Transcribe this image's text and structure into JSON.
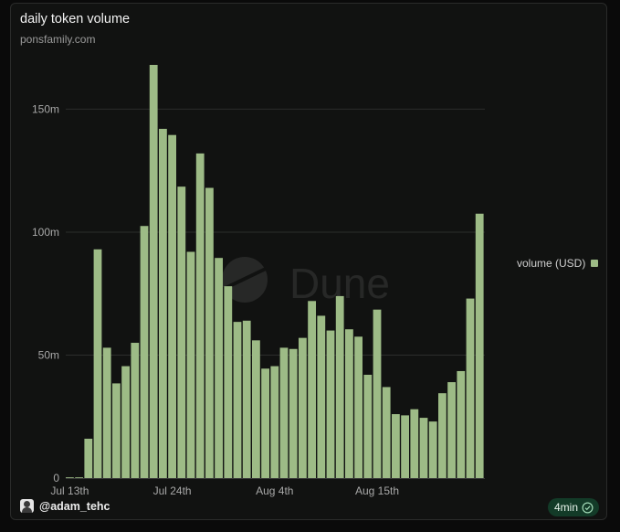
{
  "header": {
    "title": "daily token volume",
    "subtitle": "ponsfamily.com"
  },
  "watermark": {
    "text": "Dune",
    "icon": "dune-logo-icon"
  },
  "legend": {
    "label": "volume (USD)"
  },
  "footer": {
    "user": "@adam_tehc",
    "avatar_icon": "avatar-icon",
    "freshness": "4min",
    "freshness_icon": "check-circle-icon"
  },
  "colors": {
    "bar": "#9dbb86",
    "freshness_bg": "#133b28"
  },
  "chart_data": {
    "type": "bar",
    "title": "daily token volume",
    "xlabel": "",
    "ylabel": "",
    "x_ticks": [
      "Jul 13th",
      "Jul 24th",
      "Aug 4th",
      "Aug 15th"
    ],
    "y_ticks": [
      "0",
      "50m",
      "100m",
      "150m"
    ],
    "ylim": [
      0,
      168000000
    ],
    "grid": true,
    "legend_position": "right",
    "series": [
      {
        "name": "volume (USD)",
        "values": [
          0,
          0,
          16000000,
          93000000,
          53000000,
          38500000,
          45500000,
          55000000,
          102500000,
          168000000,
          142000000,
          139500000,
          118500000,
          92000000,
          132000000,
          118000000,
          89500000,
          78000000,
          63500000,
          64000000,
          56000000,
          44500000,
          45500000,
          53000000,
          52500000,
          57000000,
          72000000,
          66000000,
          60000000,
          74000000,
          60500000,
          57500000,
          42000000,
          68500000,
          37000000,
          26000000,
          25500000,
          28000000,
          24500000,
          23000000,
          34500000,
          39000000,
          43500000,
          73000000,
          107500000
        ]
      }
    ]
  }
}
